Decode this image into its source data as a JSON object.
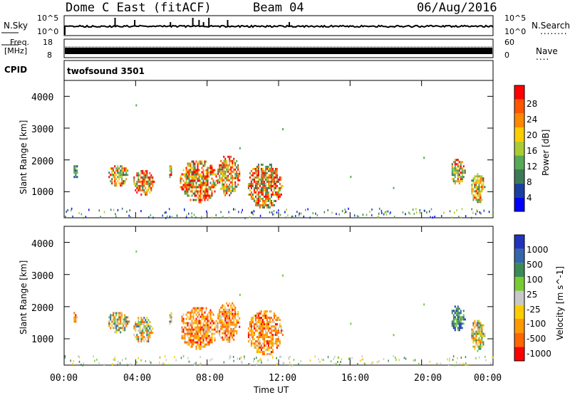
{
  "header": {
    "station": "Dome C East (fitACF)",
    "beam": "Beam 04",
    "date": "06/Aug/2016"
  },
  "strips": {
    "nsky_label": "N.Sky",
    "nsky_ticks": [
      "10^5",
      "10^0"
    ],
    "nsearch_label": "N.Search",
    "freq_label": "Freq.",
    "freq_unit": "[MHz]",
    "freq_ticks": [
      "18",
      "8"
    ],
    "nave_label": "Nave",
    "nave_ticks": [
      "60",
      "0"
    ],
    "cpid_label": "CPID",
    "cpid_value": "twofsound 3501",
    "dots_a": "........",
    "dots_b": "...."
  },
  "axes": {
    "ylabel_top": "Slant Range [km]",
    "ylabel_bottom": "Slant Range [km]",
    "xlabel": "Time UT",
    "xticks": [
      "00:00",
      "04:00",
      "08:00",
      "12:00",
      "16:00",
      "20:00",
      "00:00"
    ],
    "yticks": [
      "1000",
      "2000",
      "3000",
      "4000"
    ]
  },
  "chart_data": [
    {
      "type": "heatmap",
      "title": "",
      "xlabel": "",
      "ylabel": "Slant Range [km]",
      "xlim_hours": [
        0,
        24
      ],
      "ylim": [
        180,
        4500
      ],
      "colorbar_label": "Power [dB]",
      "colorbar_ticks": [
        "4",
        "8",
        "12",
        "16",
        "20",
        "24",
        "28"
      ],
      "colors": [
        "#0000ff",
        "#1a3fa0",
        "#3c7a55",
        "#55aa55",
        "#aacc33",
        "#ffcc00",
        "#ff8800",
        "#ff5500",
        "#ff0000"
      ],
      "echo_regions": [
        {
          "t": [
            0.45,
            0.75
          ],
          "r": [
            1450,
            1900
          ],
          "level": "low"
        },
        {
          "t": [
            2.4,
            3.6
          ],
          "r": [
            1200,
            1900
          ],
          "level": "mid"
        },
        {
          "t": [
            3.8,
            5.0
          ],
          "r": [
            900,
            1750
          ],
          "level": "high"
        },
        {
          "t": [
            5.8,
            6.0
          ],
          "r": [
            1450,
            1900
          ],
          "level": "mid"
        },
        {
          "t": [
            6.4,
            8.6
          ],
          "r": [
            700,
            2050
          ],
          "level": "high"
        },
        {
          "t": [
            8.5,
            9.8
          ],
          "r": [
            900,
            2200
          ],
          "level": "high"
        },
        {
          "t": [
            10.2,
            12.2
          ],
          "r": [
            500,
            1950
          ],
          "level": "high"
        },
        {
          "t": [
            21.6,
            22.4
          ],
          "r": [
            1250,
            2100
          ],
          "level": "mid"
        },
        {
          "t": [
            22.7,
            23.5
          ],
          "r": [
            650,
            1650
          ],
          "level": "mid"
        }
      ]
    },
    {
      "type": "heatmap",
      "title": "",
      "xlabel": "Time UT",
      "ylabel": "Slant Range [km]",
      "xlim_hours": [
        0,
        24
      ],
      "ylim": [
        180,
        4500
      ],
      "colorbar_label": "Velocity [m s^-1]",
      "colorbar_ticks": [
        "1000",
        "500",
        "100",
        "25",
        "-25",
        "-100",
        "-500",
        "-1000"
      ],
      "colors": [
        "#2233bb",
        "#3366aa",
        "#3c8a55",
        "#77cc33",
        "#c8c8c8",
        "#ffcc00",
        "#ff9900",
        "#ff6600",
        "#ff0000"
      ],
      "echo_regions": [
        {
          "t": [
            0.45,
            0.75
          ],
          "r": [
            1450,
            1900
          ],
          "level": "neg"
        },
        {
          "t": [
            2.4,
            3.6
          ],
          "r": [
            1200,
            1900
          ],
          "level": "mixed"
        },
        {
          "t": [
            3.8,
            5.0
          ],
          "r": [
            900,
            1750
          ],
          "level": "mixed"
        },
        {
          "t": [
            5.8,
            6.0
          ],
          "r": [
            1450,
            1900
          ],
          "level": "mixed"
        },
        {
          "t": [
            6.4,
            8.6
          ],
          "r": [
            700,
            2050
          ],
          "level": "neg"
        },
        {
          "t": [
            8.5,
            9.8
          ],
          "r": [
            900,
            2200
          ],
          "level": "neg"
        },
        {
          "t": [
            10.2,
            12.2
          ],
          "r": [
            500,
            1950
          ],
          "level": "neg"
        },
        {
          "t": [
            21.6,
            22.4
          ],
          "r": [
            1250,
            2100
          ],
          "level": "pos"
        },
        {
          "t": [
            22.7,
            23.5
          ],
          "r": [
            650,
            1650
          ],
          "level": "mixed"
        }
      ]
    }
  ]
}
